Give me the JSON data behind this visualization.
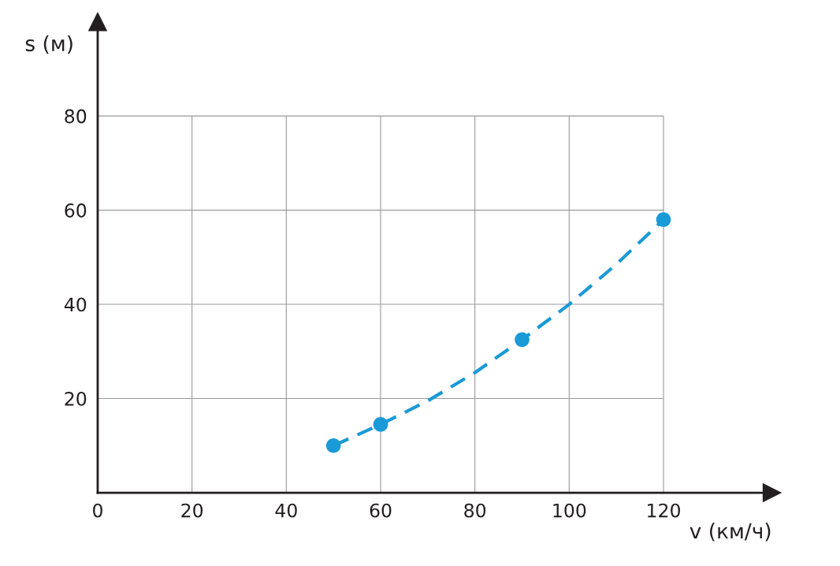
{
  "chart_data": {
    "type": "scatter",
    "xlabel": "v (км/ч)",
    "ylabel": "s (м)",
    "xlim": [
      0,
      143
    ],
    "ylim": [
      0,
      100
    ],
    "xticks": [
      0,
      20,
      40,
      60,
      80,
      100,
      120
    ],
    "yticks": [
      {
        "value": 0,
        "label": null
      },
      20,
      40,
      60,
      80
    ],
    "grid": true,
    "legend": false,
    "series": [
      {
        "type": "line",
        "color": "#1a9ad6",
        "line_style": "dashed",
        "marker": "none",
        "x": [
          50,
          60,
          70,
          80,
          90,
          100,
          110,
          120
        ],
        "values": [
          10,
          14.5,
          19.5,
          25.5,
          32.5,
          40,
          48.5,
          58
        ]
      },
      {
        "color": "#1a9ad6",
        "marker": "circle",
        "x": [
          50,
          60,
          90,
          120
        ],
        "values": [
          10,
          14.5,
          32.5,
          58
        ]
      }
    ]
  }
}
